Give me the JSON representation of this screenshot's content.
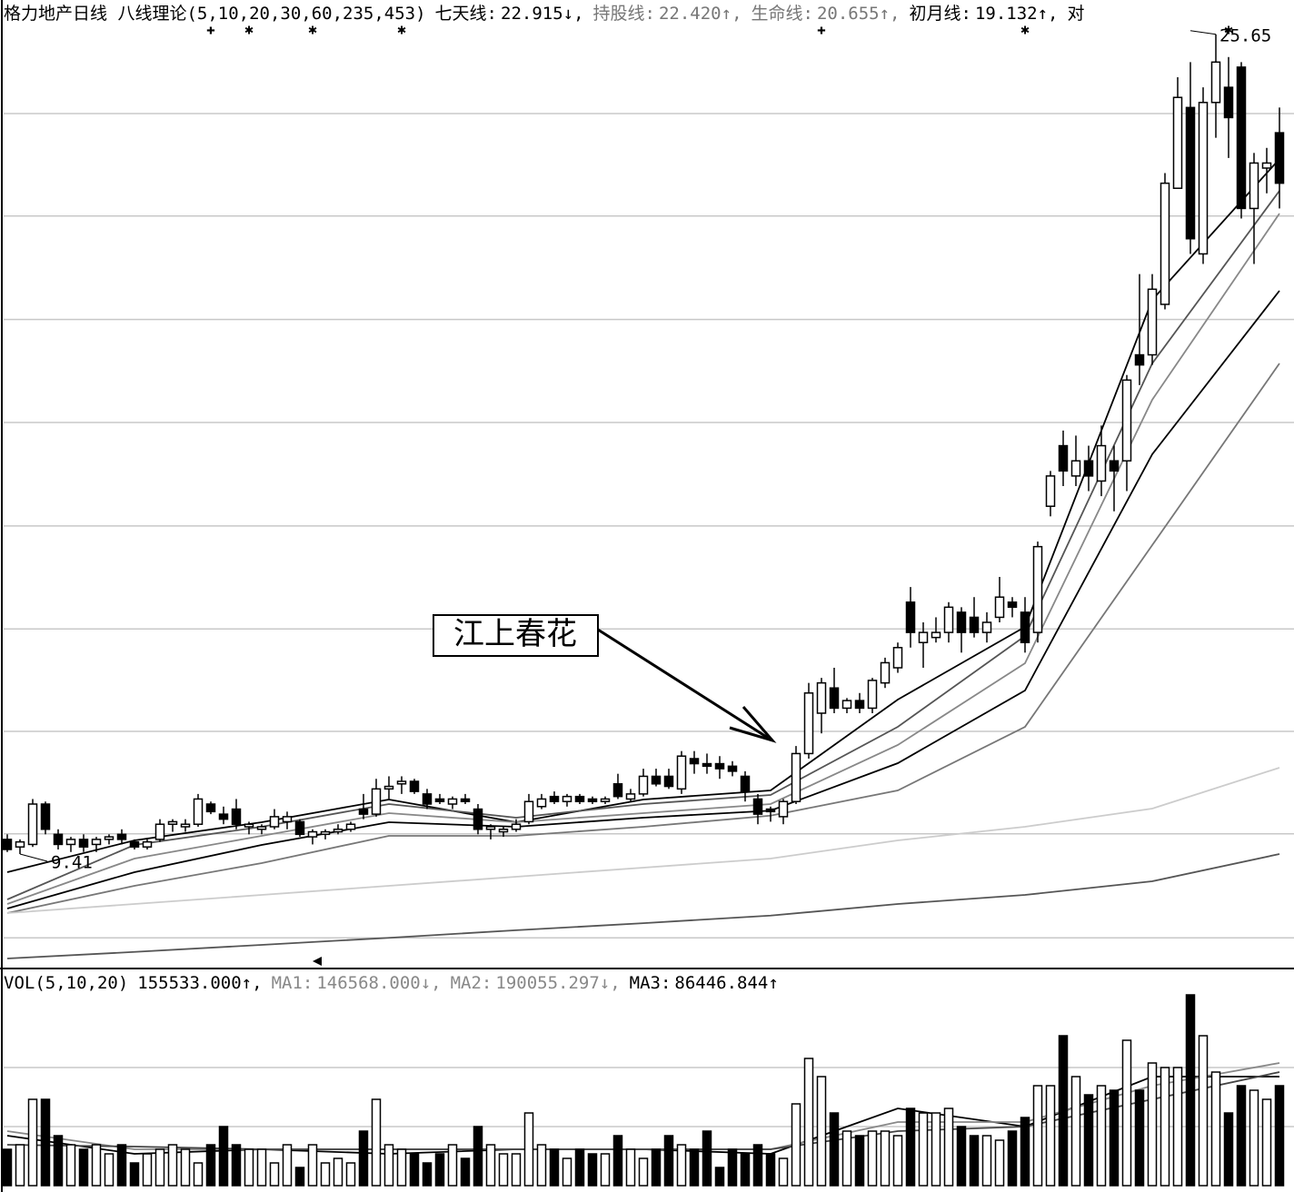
{
  "chart_data": [
    {
      "type": "candlestick",
      "header": {
        "title": "格力地产日线 八线理论(5,10,20,30,60,235,453)",
        "items": [
          {
            "label": "七天线:",
            "value": 22.915,
            "arrow": "↓,",
            "color": "#000000"
          },
          {
            "label": "持股线:",
            "value": {
              "value": 22.42,
              "label": "22.420"
            },
            "arrow": "↑,",
            "color": "#777777"
          },
          {
            "label": "生命线:",
            "value": 20.655,
            "arrow": "↑,",
            "color": "#777777"
          },
          {
            "label": "初月线:",
            "value": 19.132,
            "arrow": "↑,",
            "color": "#000000"
          },
          {
            "label": "对",
            "color": "#000000"
          }
        ]
      },
      "ylim": [
        7.16,
        25.79
      ],
      "yticks": [
        24.08,
        22.05,
        20,
        17.96,
        15.91,
        13.87,
        11.84,
        9.81,
        7.75
      ],
      "grid": true,
      "values": [
        [
          9.7,
          9.8,
          9.45,
          9.5
        ],
        [
          9.55,
          9.7,
          9.41,
          9.65
        ],
        [
          9.6,
          10.5,
          9.55,
          10.4
        ],
        [
          10.4,
          10.45,
          9.8,
          9.9
        ],
        [
          9.8,
          9.9,
          9.5,
          9.6
        ],
        [
          9.6,
          9.75,
          9.45,
          9.7
        ],
        [
          9.7,
          9.8,
          9.45,
          9.55
        ],
        [
          9.6,
          9.75,
          9.45,
          9.7
        ],
        [
          9.7,
          9.8,
          9.6,
          9.75
        ],
        [
          9.8,
          9.9,
          9.6,
          9.7
        ],
        [
          9.65,
          9.7,
          9.5,
          9.55
        ],
        [
          9.55,
          9.7,
          9.5,
          9.65
        ],
        [
          9.7,
          10.1,
          9.65,
          10.0
        ],
        [
          10.0,
          10.1,
          9.85,
          10.05
        ],
        [
          9.95,
          10.1,
          9.85,
          10.0
        ],
        [
          10.0,
          10.6,
          9.95,
          10.5
        ],
        [
          10.4,
          10.45,
          10.2,
          10.25
        ],
        [
          10.2,
          10.35,
          10.0,
          10.1
        ],
        [
          10.3,
          10.5,
          9.9,
          10.0
        ],
        [
          9.95,
          10.05,
          9.8,
          10.0
        ],
        [
          9.9,
          10.0,
          9.8,
          9.95
        ],
        [
          9.95,
          10.3,
          9.9,
          10.15
        ],
        [
          10.05,
          10.25,
          9.9,
          10.15
        ],
        [
          10.05,
          10.1,
          9.75,
          9.8
        ],
        [
          9.75,
          9.9,
          9.6,
          9.85
        ],
        [
          9.8,
          9.9,
          9.7,
          9.85
        ],
        [
          9.85,
          10.0,
          9.8,
          9.9
        ],
        [
          9.9,
          10.05,
          9.85,
          10.0
        ],
        [
          10.3,
          10.6,
          10.1,
          10.2
        ],
        [
          10.2,
          10.9,
          10.15,
          10.7
        ],
        [
          10.7,
          10.95,
          10.5,
          10.75
        ],
        [
          10.8,
          10.95,
          10.6,
          10.85
        ],
        [
          10.85,
          10.9,
          10.6,
          10.65
        ],
        [
          10.6,
          10.7,
          10.3,
          10.4
        ],
        [
          10.5,
          10.6,
          10.4,
          10.45
        ],
        [
          10.4,
          10.55,
          10.3,
          10.5
        ],
        [
          10.5,
          10.6,
          10.4,
          10.45
        ],
        [
          10.3,
          10.4,
          9.8,
          9.9
        ],
        [
          9.9,
          10.0,
          9.7,
          9.95
        ],
        [
          9.85,
          9.95,
          9.75,
          9.9
        ],
        [
          9.9,
          10.1,
          9.85,
          10.0
        ],
        [
          10.05,
          10.6,
          10.0,
          10.45
        ],
        [
          10.35,
          10.6,
          10.3,
          10.5
        ],
        [
          10.55,
          10.65,
          10.4,
          10.45
        ],
        [
          10.45,
          10.6,
          10.35,
          10.55
        ],
        [
          10.55,
          10.6,
          10.4,
          10.45
        ],
        [
          10.5,
          10.55,
          10.4,
          10.45
        ],
        [
          10.45,
          10.55,
          10.4,
          10.5
        ],
        [
          10.8,
          11.0,
          10.5,
          10.55
        ],
        [
          10.5,
          10.7,
          10.45,
          10.6
        ],
        [
          10.6,
          11.1,
          10.55,
          10.95
        ],
        [
          10.95,
          11.1,
          10.75,
          10.8
        ],
        [
          10.95,
          11.1,
          10.7,
          10.75
        ],
        [
          10.7,
          11.45,
          10.6,
          11.35
        ],
        [
          11.3,
          11.45,
          11.0,
          11.2
        ],
        [
          11.2,
          11.4,
          11.0,
          11.15
        ],
        [
          11.2,
          11.35,
          10.9,
          11.1
        ],
        [
          11.15,
          11.25,
          10.95,
          11.05
        ],
        [
          10.95,
          11.05,
          10.45,
          10.65
        ],
        [
          10.5,
          10.6,
          10.0,
          10.2
        ],
        [
          10.3,
          10.35,
          10.05,
          10.25
        ],
        [
          10.15,
          10.5,
          10.0,
          10.45
        ],
        [
          10.45,
          11.55,
          10.4,
          11.4
        ],
        [
          11.4,
          12.8,
          11.3,
          12.6
        ],
        [
          12.2,
          12.9,
          11.8,
          12.8
        ],
        [
          12.7,
          13.1,
          12.2,
          12.3
        ],
        [
          12.3,
          12.5,
          12.2,
          12.45
        ],
        [
          12.45,
          12.6,
          12.2,
          12.3
        ],
        [
          12.3,
          12.9,
          12.2,
          12.85
        ],
        [
          12.8,
          13.3,
          12.7,
          13.2
        ],
        [
          13.1,
          13.6,
          13.0,
          13.5
        ],
        [
          14.4,
          14.7,
          13.5,
          13.8
        ],
        [
          13.6,
          14.0,
          13.1,
          13.8
        ],
        [
          13.7,
          14.1,
          13.6,
          13.8
        ],
        [
          13.8,
          14.4,
          13.6,
          14.3
        ],
        [
          14.2,
          14.3,
          13.4,
          13.8
        ],
        [
          14.1,
          14.5,
          13.7,
          13.8
        ],
        [
          13.8,
          14.2,
          13.6,
          14.0
        ],
        [
          14.1,
          14.9,
          14.0,
          14.5
        ],
        [
          14.4,
          14.5,
          14.1,
          14.3
        ],
        [
          14.2,
          14.5,
          13.4,
          13.6
        ],
        [
          13.8,
          15.6,
          13.6,
          15.5
        ],
        [
          16.3,
          17.0,
          16.1,
          16.9
        ],
        [
          17.5,
          17.8,
          16.7,
          17.0
        ],
        [
          16.9,
          17.7,
          16.7,
          17.2
        ],
        [
          17.2,
          17.5,
          16.6,
          16.9
        ],
        [
          16.8,
          17.9,
          16.5,
          17.5
        ],
        [
          17.2,
          17.5,
          16.2,
          17.0
        ],
        [
          17.2,
          18.9,
          16.6,
          18.8
        ],
        [
          19.3,
          20.9,
          18.7,
          19.1
        ],
        [
          19.3,
          20.9,
          19.1,
          20.6
        ],
        [
          20.3,
          22.9,
          20.2,
          22.7
        ],
        [
          22.6,
          24.8,
          22.6,
          24.4
        ],
        [
          24.2,
          25.1,
          21.3,
          21.6
        ],
        [
          21.3,
          24.6,
          21.1,
          24.3
        ],
        [
          24.3,
          25.65,
          23.6,
          25.1
        ],
        [
          24.6,
          25.2,
          23.2,
          24.0
        ],
        [
          25.0,
          25.1,
          22.0,
          22.2
        ],
        [
          22.2,
          23.3,
          21.1,
          23.1
        ],
        [
          23.0,
          23.4,
          22.5,
          23.1
        ],
        [
          23.7,
          24.2,
          22.2,
          22.7
        ]
      ],
      "signals": [
        null,
        null,
        null,
        null,
        null,
        null,
        null,
        null,
        null,
        null,
        null,
        null,
        null,
        null,
        null,
        null,
        "✚",
        null,
        null,
        "✱",
        null,
        null,
        null,
        null,
        "✱",
        null,
        null,
        null,
        null,
        null,
        null,
        "✱",
        null,
        null,
        null,
        null,
        null,
        null,
        null,
        null,
        null,
        null,
        null,
        null,
        null,
        null,
        null,
        null,
        null,
        null,
        null,
        null,
        null,
        null,
        null,
        null,
        null,
        null,
        null,
        null,
        null,
        null,
        null,
        null,
        "✚",
        null,
        null,
        null,
        null,
        null,
        null,
        null,
        null,
        null,
        null,
        null,
        null,
        null,
        null,
        null,
        "✱",
        null,
        null,
        null,
        null,
        null,
        null,
        null,
        null,
        null,
        null,
        null,
        null,
        null,
        null,
        null,
        "✱",
        null,
        null,
        null,
        null
      ],
      "lines": {
        "x": [
          0,
          10,
          20,
          30,
          40,
          50,
          60,
          70,
          80,
          90,
          100
        ],
        "series": [
          {
            "color": "#000000",
            "values": [
              9.05,
              9.68,
              10.04,
              10.49,
              10.04,
              10.49,
              10.67,
              12.47,
              13.91,
              20.39,
              23.18
            ]
          },
          {
            "color": "#555555",
            "values": [
              8.51,
              9.59,
              9.95,
              10.4,
              10.13,
              10.4,
              10.58,
              11.93,
              13.73,
              19.13,
              22.55
            ]
          },
          {
            "color": "#888888",
            "values": [
              8.42,
              9.32,
              9.77,
              10.22,
              10.04,
              10.22,
              10.4,
              11.57,
              13.19,
              18.41,
              22.1
            ]
          },
          {
            "color": "#000000",
            "values": [
              8.33,
              9.05,
              9.59,
              10.04,
              9.95,
              10.13,
              10.27,
              11.21,
              12.65,
              17.33,
              20.57
            ]
          },
          {
            "color": "#777777",
            "values": [
              8.24,
              8.78,
              9.23,
              9.77,
              9.77,
              9.95,
              10.17,
              10.67,
              11.93,
              15.53,
              19.13
            ]
          },
          {
            "color": "#cccccc",
            "values": [
              8.24,
              8.42,
              8.6,
              8.78,
              8.96,
              9.14,
              9.32,
              9.68,
              9.95,
              10.31,
              11.12
            ]
          },
          {
            "color": "#555555",
            "values": [
              7.34,
              7.47,
              7.61,
              7.75,
              7.9,
              8.04,
              8.19,
              8.42,
              8.6,
              8.87,
              9.41
            ]
          }
        ]
      },
      "low_label": 9.41,
      "high_label": 25.65,
      "callout": "江上春花"
    },
    {
      "type": "volume",
      "header": {
        "title": "VOL(5,10,20)",
        "items": [
          {
            "value": {
              "value": 155533,
              "label": "155533.000"
            },
            "arrow": "↑,",
            "color": "#000000"
          },
          {
            "label": "MA1:",
            "value": {
              "value": 146568,
              "label": "146568.000"
            },
            "arrow": "↓,",
            "color": "#888888"
          },
          {
            "label": "MA2:",
            "value": 190055.297,
            "arrow": "↓,",
            "color": "#888888"
          },
          {
            "label": "MA3:",
            "value": 86446.844,
            "arrow": "↑",
            "color": "#000000"
          }
        ]
      },
      "ylim": [
        0,
        592500
      ],
      "yticks": [
        325000,
        162500
      ],
      "grid": true,
      "values": [
        100000,
        112500,
        237500,
        237500,
        137500,
        112500,
        100000,
        112500,
        87500,
        112500,
        62500,
        87500,
        100000,
        112500,
        100000,
        62500,
        112500,
        162500,
        112500,
        100000,
        100000,
        62500,
        112500,
        50000,
        112500,
        62500,
        75000,
        62500,
        150000,
        237500,
        112500,
        100000,
        87500,
        62500,
        87500,
        112500,
        75000,
        162500,
        112500,
        87500,
        87500,
        200000,
        112500,
        100000,
        75000,
        100000,
        87500,
        87500,
        137500,
        100000,
        75000,
        100000,
        137500,
        112500,
        100000,
        150000,
        50000,
        100000,
        87500,
        112500,
        87500,
        75000,
        225000,
        350000,
        300000,
        200000,
        150000,
        137500,
        150000,
        150000,
        137500,
        212500,
        200000,
        200000,
        212500,
        162500,
        137500,
        137500,
        125000,
        150000,
        187500,
        275000,
        275000,
        412500,
        300000,
        250000,
        275000,
        262500,
        400000,
        262500,
        337500,
        325000,
        325000,
        525000,
        412500,
        312500,
        200000,
        275000,
        262500,
        237500,
        275000
      ],
      "lines": {
        "x": [
          0,
          10,
          20,
          30,
          40,
          50,
          60,
          70,
          80,
          90,
          100
        ],
        "series": [
          {
            "color": "#000000",
            "values": [
              137500,
              87500,
              100000,
              87500,
              100000,
              100000,
              87500,
              212500,
              162500,
              300000,
              300000
            ]
          },
          {
            "color": "#888888",
            "values": [
              150000,
              100000,
              100000,
              100000,
              100000,
              100000,
              100000,
              175000,
              175000,
              275000,
              337500
            ]
          },
          {
            "color": "#444444",
            "values": [
              112500,
              107500,
              100000,
              100000,
              100000,
              100000,
              100000,
              150000,
              162500,
              237500,
              312500
            ]
          }
        ]
      }
    }
  ]
}
